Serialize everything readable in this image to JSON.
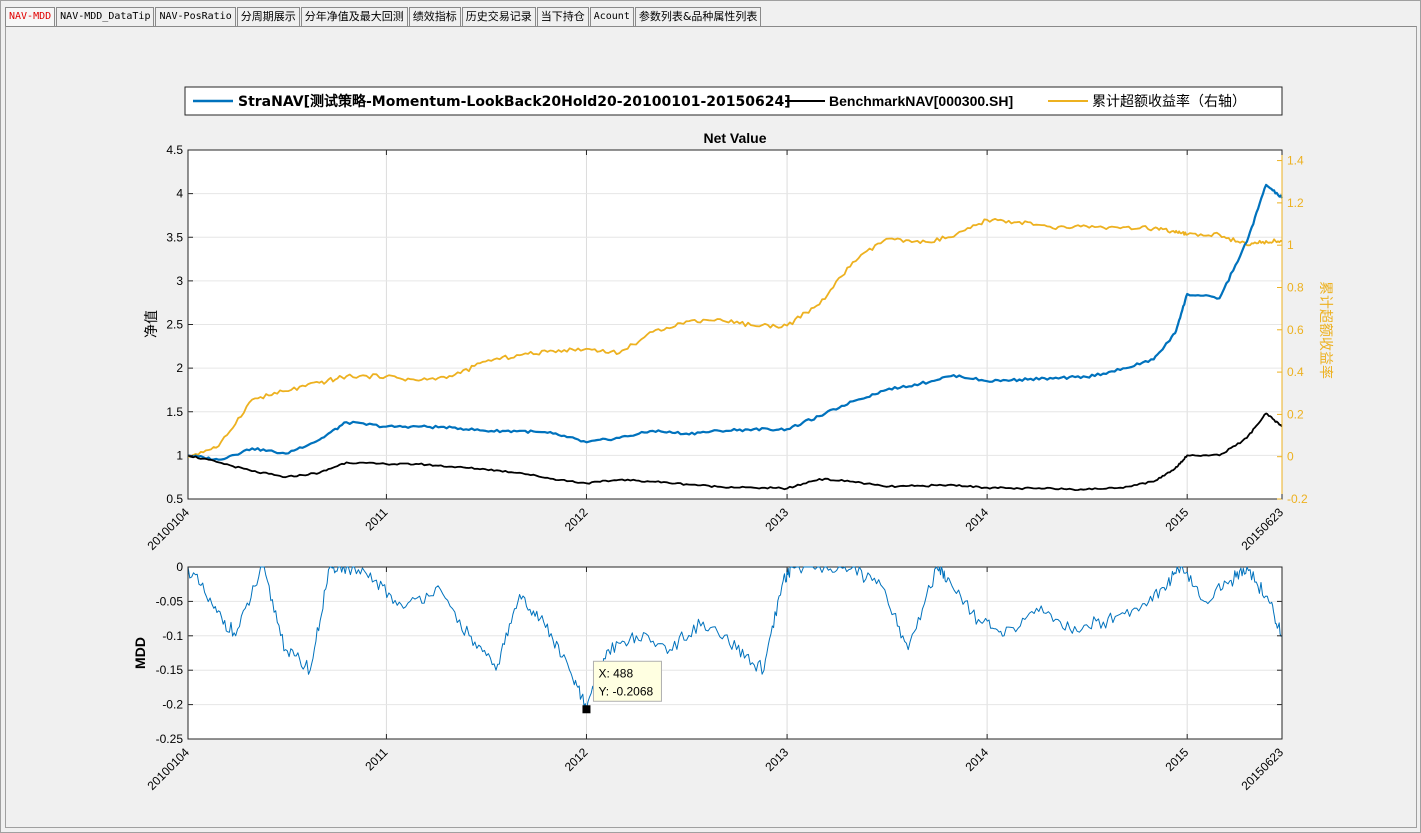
{
  "tabs": [
    {
      "label": "NAV-MDD",
      "active": true
    },
    {
      "label": "NAV-MDD_DataTip"
    },
    {
      "label": "NAV-PosRatio"
    },
    {
      "label": "分周期展示"
    },
    {
      "label": "分年净值及最大回测"
    },
    {
      "label": "绩效指标"
    },
    {
      "label": "历史交易记录"
    },
    {
      "label": "当下持仓"
    },
    {
      "label": "Acount"
    },
    {
      "label": "参数列表&品种属性列表"
    }
  ],
  "colors": {
    "strategy": "#0072bd",
    "benchmark": "#000000",
    "excess": "#edb120",
    "active_tab": "#e00000"
  },
  "chart_data": [
    {
      "type": "line",
      "title": "Net Value",
      "ylabel": "净值",
      "y2label": "累计超额收益率",
      "legend": [
        "StraNAV[测试策略-Momentum-LookBack20Hold20-20100101-20150624]",
        "BenchmarkNAV[000300.SH]",
        "累计超额收益率（右轴）"
      ],
      "x_tick_labels": [
        "20100104",
        "2011",
        "2012",
        "2013",
        "2014",
        "2015",
        "20150623"
      ],
      "x_tick_dates": [
        "2010-01-04",
        "2011-01-01",
        "2012-01-01",
        "2013-01-01",
        "2014-01-01",
        "2015-01-01",
        "2015-06-23"
      ],
      "ylim": [
        0.5,
        4.5
      ],
      "yticks": [
        "0.5",
        "1",
        "1.5",
        "2",
        "2.5",
        "3",
        "3.5",
        "4",
        "4.5"
      ],
      "y2lim": [
        -0.2,
        1.45
      ],
      "y2ticks": [
        "-0.2",
        "0",
        "0.2",
        "0.4",
        "0.6",
        "0.8",
        "1",
        "1.2",
        "1.4"
      ],
      "grid": true,
      "legend_placement": "top",
      "x": [
        "2010-01-04",
        "2010-03-01",
        "2010-05-01",
        "2010-07-01",
        "2010-09-01",
        "2010-10-20",
        "2011-01-01",
        "2011-03-01",
        "2011-05-01",
        "2011-07-01",
        "2011-09-01",
        "2011-11-01",
        "2012-01-01",
        "2012-03-01",
        "2012-05-01",
        "2012-07-01",
        "2012-09-01",
        "2012-11-01",
        "2013-01-01",
        "2013-03-01",
        "2013-05-01",
        "2013-07-01",
        "2013-09-01",
        "2013-11-01",
        "2014-01-01",
        "2014-03-01",
        "2014-05-01",
        "2014-07-01",
        "2014-09-01",
        "2014-11-01",
        "2014-12-10",
        "2015-01-01",
        "2015-03-01",
        "2015-04-20",
        "2015-05-25",
        "2015-06-23"
      ],
      "series": [
        {
          "name": "StraNAV[测试策略-Momentum-LookBack20Hold20-20100101-20150624]",
          "axis": "left",
          "values": [
            1.0,
            0.95,
            1.08,
            1.02,
            1.18,
            1.38,
            1.33,
            1.33,
            1.32,
            1.28,
            1.28,
            1.25,
            1.15,
            1.2,
            1.28,
            1.25,
            1.28,
            1.3,
            1.3,
            1.45,
            1.62,
            1.75,
            1.82,
            1.92,
            1.85,
            1.87,
            1.88,
            1.9,
            1.98,
            2.1,
            2.4,
            2.85,
            2.8,
            3.45,
            4.1,
            3.95
          ]
        },
        {
          "name": "BenchmarkNAV[000300.SH]",
          "axis": "left",
          "values": [
            1.0,
            0.92,
            0.82,
            0.75,
            0.8,
            0.92,
            0.9,
            0.9,
            0.87,
            0.84,
            0.8,
            0.73,
            0.68,
            0.72,
            0.7,
            0.67,
            0.64,
            0.63,
            0.62,
            0.73,
            0.7,
            0.64,
            0.65,
            0.66,
            0.63,
            0.62,
            0.62,
            0.61,
            0.63,
            0.7,
            0.85,
            1.0,
            1.0,
            1.2,
            1.48,
            1.33
          ]
        },
        {
          "name": "累计超额收益率（右轴）",
          "axis": "right",
          "values": [
            0.0,
            0.05,
            0.27,
            0.31,
            0.35,
            0.38,
            0.38,
            0.36,
            0.38,
            0.45,
            0.48,
            0.5,
            0.51,
            0.49,
            0.59,
            0.64,
            0.65,
            0.62,
            0.62,
            0.72,
            0.92,
            1.03,
            1.01,
            1.04,
            1.12,
            1.11,
            1.08,
            1.09,
            1.08,
            1.08,
            1.06,
            1.05,
            1.05,
            1.0,
            1.02,
            1.02
          ]
        }
      ]
    },
    {
      "type": "line",
      "ylabel": "MDD",
      "x_tick_labels": [
        "20100104",
        "2011",
        "2012",
        "2013",
        "2014",
        "2015",
        "20150623"
      ],
      "ylim": [
        -0.25,
        0
      ],
      "yticks": [
        "-0.25",
        "-0.2",
        "-0.15",
        "-0.1",
        "-0.05",
        "0"
      ],
      "grid": true,
      "datatip": {
        "x_label": "X: 488",
        "y_label": "Y: -0.2068",
        "x": 488,
        "y": -0.2068
      },
      "x": [
        "2010-01-04",
        "2010-02-20",
        "2010-04-01",
        "2010-05-20",
        "2010-07-01",
        "2010-08-15",
        "2010-09-20",
        "2010-10-20",
        "2010-12-10",
        "2011-02-01",
        "2011-04-01",
        "2011-06-01",
        "2011-07-20",
        "2011-09-01",
        "2011-10-15",
        "2011-12-01",
        "2012-01-01",
        "2012-02-10",
        "2012-04-01",
        "2012-06-01",
        "2012-08-01",
        "2012-10-01",
        "2012-11-20",
        "2012-12-25",
        "2013-01-10",
        "2013-03-10",
        "2013-05-01",
        "2013-06-25",
        "2013-08-10",
        "2013-10-01",
        "2013-10-25",
        "2013-12-20",
        "2014-02-01",
        "2014-04-01",
        "2014-06-01",
        "2014-08-01",
        "2014-10-01",
        "2014-11-20",
        "2014-12-20",
        "2015-02-01",
        "2015-03-20",
        "2015-04-20",
        "2015-05-30",
        "2015-06-23"
      ],
      "series": [
        {
          "name": "MDD",
          "values": [
            0,
            -0.06,
            -0.1,
            0,
            -0.12,
            -0.15,
            0,
            0,
            -0.02,
            -0.06,
            -0.03,
            -0.1,
            -0.15,
            -0.04,
            -0.08,
            -0.15,
            -0.2068,
            -0.12,
            -0.1,
            -0.12,
            -0.08,
            -0.12,
            -0.15,
            -0.02,
            0,
            0,
            0,
            -0.03,
            -0.12,
            0,
            -0.02,
            -0.08,
            -0.1,
            -0.06,
            -0.09,
            -0.08,
            -0.06,
            -0.03,
            0,
            -0.05,
            -0.02,
            0,
            -0.05,
            -0.1
          ]
        }
      ]
    }
  ]
}
